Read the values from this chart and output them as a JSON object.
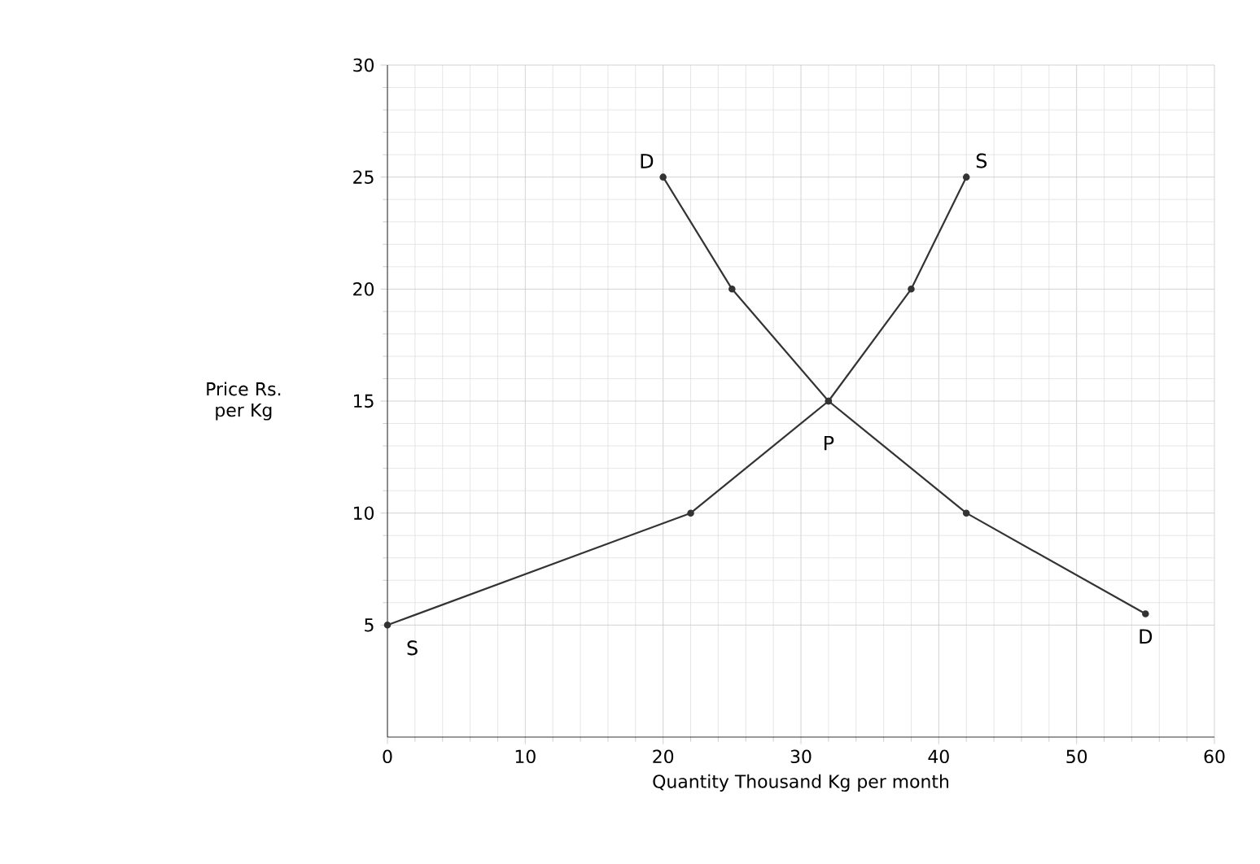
{
  "chart_data": {
    "type": "line",
    "xlabel": "Quantity Thousand Kg per month",
    "ylabel": "Price Rs. per Kg",
    "series": [
      {
        "color": "#333333",
        "x": [
          20,
          25,
          32,
          42,
          55
        ],
        "values": [
          25,
          20,
          15,
          10,
          5.5
        ]
      },
      {
        "color": "#333333",
        "x": [
          0,
          22,
          32,
          38,
          42
        ],
        "values": [
          5,
          10,
          15,
          20,
          25
        ]
      }
    ],
    "xlim": [
      0,
      60
    ],
    "ylim": [
      0,
      30
    ],
    "xticks": [
      0,
      10,
      20,
      30,
      40,
      50,
      60
    ],
    "yticks": [
      5,
      10,
      15,
      20,
      25,
      30
    ],
    "grid": true,
    "marker": "circle",
    "line_style": "solid",
    "annotations": [
      {
        "text": "D",
        "x": 20,
        "y": 25
      },
      {
        "text": "S",
        "x": 42,
        "y": 25
      },
      {
        "text": "P",
        "x": 32,
        "y": 15
      },
      {
        "text": "S",
        "x": 0,
        "y": 5
      },
      {
        "text": "D",
        "x": 55,
        "y": 5.5
      }
    ]
  }
}
